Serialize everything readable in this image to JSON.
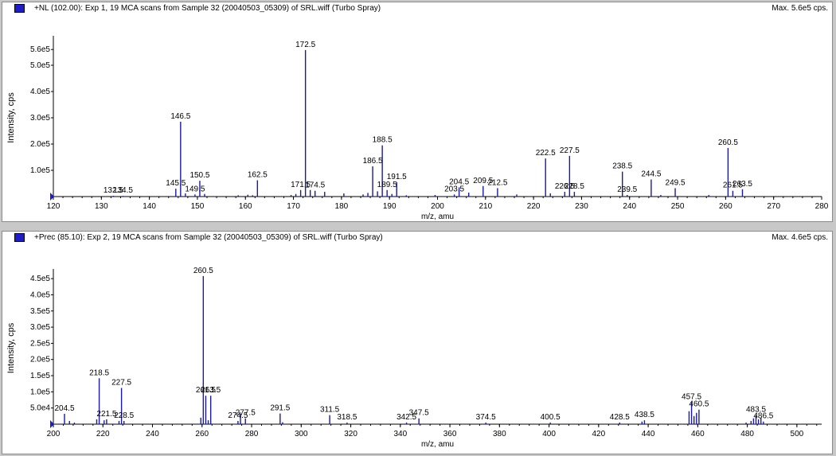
{
  "spectra": [
    {
      "header": "+NL (102.00): Exp 1, 19 MCA scans from Sample 32 (20040503_05309) of SRL.wiff (Turbo Spray)",
      "max_label": "Max. 5.6e5 cps."
    },
    {
      "header": "+Prec (85.10): Exp 2, 19 MCA scans from Sample 32 (20040503_05309) of SRL.wiff (Turbo Spray)",
      "max_label": "Max. 4.6e5 cps."
    }
  ],
  "colors": {
    "peak": "#1a1aa0",
    "axis": "#000000",
    "marker": "#1e1ec8",
    "background": "#ffffff"
  },
  "chart_data": [
    {
      "type": "bar",
      "xlabel": "m/z, amu",
      "ylabel": "Intensity, cps",
      "xlim": [
        120,
        280
      ],
      "ylim": [
        0,
        600000
      ],
      "xticks": [
        120,
        130,
        140,
        150,
        160,
        170,
        180,
        190,
        200,
        210,
        220,
        230,
        240,
        250,
        260,
        270,
        280
      ],
      "yticks": [
        {
          "value": 100000,
          "label": "1.0e5"
        },
        {
          "value": 200000,
          "label": "2.0e5"
        },
        {
          "value": 300000,
          "label": "3.0e5"
        },
        {
          "value": 400000,
          "label": "4.0e5"
        },
        {
          "value": 500000,
          "label": "5.0e5"
        },
        {
          "value": 560000,
          "label": "5.6e5"
        }
      ],
      "peaks": [
        {
          "x": 132.5,
          "y": 3000,
          "label": "132.5"
        },
        {
          "x": 134.5,
          "y": 2500,
          "label": "134.5"
        },
        {
          "x": 145.5,
          "y": 30000,
          "label": "145.5"
        },
        {
          "x": 146.5,
          "y": 285000,
          "label": "146.5"
        },
        {
          "x": 147.5,
          "y": 12000
        },
        {
          "x": 149.5,
          "y": 8000,
          "label": "149.5"
        },
        {
          "x": 150.5,
          "y": 60000,
          "label": "150.5"
        },
        {
          "x": 151.5,
          "y": 10000
        },
        {
          "x": 158.5,
          "y": 5000
        },
        {
          "x": 160.5,
          "y": 7000
        },
        {
          "x": 161.5,
          "y": 5000
        },
        {
          "x": 162.5,
          "y": 62000,
          "label": "162.5"
        },
        {
          "x": 169.5,
          "y": 6000
        },
        {
          "x": 170.5,
          "y": 10000
        },
        {
          "x": 171.5,
          "y": 25000,
          "label": "171.5"
        },
        {
          "x": 172.5,
          "y": 558000,
          "label": "172.5"
        },
        {
          "x": 173.5,
          "y": 25000
        },
        {
          "x": 174.5,
          "y": 22000,
          "label": "174.5"
        },
        {
          "x": 176.5,
          "y": 18000
        },
        {
          "x": 180.5,
          "y": 12000
        },
        {
          "x": 184.5,
          "y": 8000
        },
        {
          "x": 185.5,
          "y": 14000
        },
        {
          "x": 186.5,
          "y": 115000,
          "label": "186.5"
        },
        {
          "x": 187.5,
          "y": 20000
        },
        {
          "x": 188.5,
          "y": 195000,
          "label": "188.5"
        },
        {
          "x": 189.5,
          "y": 25000,
          "label": "189.5"
        },
        {
          "x": 190.5,
          "y": 10000
        },
        {
          "x": 191.5,
          "y": 55000,
          "label": "191.5"
        },
        {
          "x": 193.5,
          "y": 5000
        },
        {
          "x": 199.5,
          "y": 6000
        },
        {
          "x": 203.5,
          "y": 8000,
          "label": "203.5"
        },
        {
          "x": 204.5,
          "y": 35000,
          "label": "204.5"
        },
        {
          "x": 206.5,
          "y": 15000
        },
        {
          "x": 209.5,
          "y": 40000,
          "label": "209.5"
        },
        {
          "x": 212.5,
          "y": 32000,
          "label": "212.5"
        },
        {
          "x": 216.5,
          "y": 8000
        },
        {
          "x": 222.5,
          "y": 145000,
          "label": "222.5"
        },
        {
          "x": 223.5,
          "y": 12000
        },
        {
          "x": 226.5,
          "y": 18000,
          "label": "226.5"
        },
        {
          "x": 227.5,
          "y": 155000,
          "label": "227.5"
        },
        {
          "x": 228.5,
          "y": 18000,
          "label": "228.5"
        },
        {
          "x": 238.5,
          "y": 95000,
          "label": "238.5"
        },
        {
          "x": 239.5,
          "y": 6000,
          "label": "239.5"
        },
        {
          "x": 244.5,
          "y": 65000,
          "label": "244.5"
        },
        {
          "x": 246.5,
          "y": 6000
        },
        {
          "x": 249.5,
          "y": 32000,
          "label": "249.5"
        },
        {
          "x": 256.5,
          "y": 6000
        },
        {
          "x": 260.5,
          "y": 185000,
          "label": "260.5"
        },
        {
          "x": 261.5,
          "y": 22000,
          "label": "261.5"
        },
        {
          "x": 263.5,
          "y": 28000,
          "label": "263.5"
        }
      ]
    },
    {
      "type": "bar",
      "xlabel": "m/z, amu",
      "ylabel": "Intensity, cps",
      "xlim": [
        200,
        510
      ],
      "ylim": [
        0,
        470000
      ],
      "xticks": [
        200,
        220,
        240,
        260,
        280,
        300,
        320,
        340,
        360,
        380,
        400,
        420,
        440,
        460,
        480,
        500
      ],
      "yticks": [
        {
          "value": 50000,
          "label": "5.0e4"
        },
        {
          "value": 100000,
          "label": "1.0e5"
        },
        {
          "value": 150000,
          "label": "1.5e5"
        },
        {
          "value": 200000,
          "label": "2.0e5"
        },
        {
          "value": 250000,
          "label": "2.5e5"
        },
        {
          "value": 300000,
          "label": "3.0e5"
        },
        {
          "value": 350000,
          "label": "3.5e5"
        },
        {
          "value": 400000,
          "label": "4.0e5"
        },
        {
          "value": 450000,
          "label": "4.5e5"
        }
      ],
      "peaks": [
        {
          "x": 204.5,
          "y": 32000,
          "label": "204.5"
        },
        {
          "x": 206.5,
          "y": 10000
        },
        {
          "x": 208.5,
          "y": 5000
        },
        {
          "x": 217.5,
          "y": 15000
        },
        {
          "x": 218.5,
          "y": 142000,
          "label": "218.5"
        },
        {
          "x": 220.5,
          "y": 12000
        },
        {
          "x": 221.5,
          "y": 15000,
          "label": "221.5"
        },
        {
          "x": 226.5,
          "y": 10000
        },
        {
          "x": 227.5,
          "y": 112000,
          "label": "227.5"
        },
        {
          "x": 228.5,
          "y": 10000,
          "label": "228.5"
        },
        {
          "x": 259.5,
          "y": 20000
        },
        {
          "x": 260.5,
          "y": 458000,
          "label": "260.5"
        },
        {
          "x": 261.5,
          "y": 88000,
          "label": "261.5"
        },
        {
          "x": 262.5,
          "y": 12000
        },
        {
          "x": 263.5,
          "y": 88000,
          "label": "263.5"
        },
        {
          "x": 275.5,
          "y": 32000
        },
        {
          "x": 277.5,
          "y": 18000,
          "label": "277.5"
        },
        {
          "x": 274.5,
          "y": 10000,
          "label": "274.5"
        },
        {
          "x": 291.5,
          "y": 33000,
          "label": "291.5"
        },
        {
          "x": 292.5,
          "y": 6000
        },
        {
          "x": 311.5,
          "y": 28000,
          "label": "311.5"
        },
        {
          "x": 318.5,
          "y": 5000,
          "label": "318.5"
        },
        {
          "x": 342.5,
          "y": 5000,
          "label": "342.5"
        },
        {
          "x": 347.5,
          "y": 18000,
          "label": "347.5"
        },
        {
          "x": 374.5,
          "y": 5000,
          "label": "374.5"
        },
        {
          "x": 400.5,
          "y": 5000,
          "label": "400.5"
        },
        {
          "x": 428.5,
          "y": 5000,
          "label": "428.5"
        },
        {
          "x": 437.5,
          "y": 8000
        },
        {
          "x": 438.5,
          "y": 12000,
          "label": "438.5"
        },
        {
          "x": 456.5,
          "y": 40000
        },
        {
          "x": 457.5,
          "y": 68000,
          "label": "457.5"
        },
        {
          "x": 458.5,
          "y": 25000
        },
        {
          "x": 459.5,
          "y": 35000
        },
        {
          "x": 460.5,
          "y": 45000,
          "label": "460.5"
        },
        {
          "x": 479.5,
          "y": 5000
        },
        {
          "x": 481.5,
          "y": 10000
        },
        {
          "x": 482.5,
          "y": 18000
        },
        {
          "x": 483.5,
          "y": 28000,
          "label": "483.5"
        },
        {
          "x": 484.5,
          "y": 15000
        },
        {
          "x": 485.5,
          "y": 20000
        },
        {
          "x": 486.5,
          "y": 8000,
          "label": "486.5"
        }
      ]
    }
  ]
}
